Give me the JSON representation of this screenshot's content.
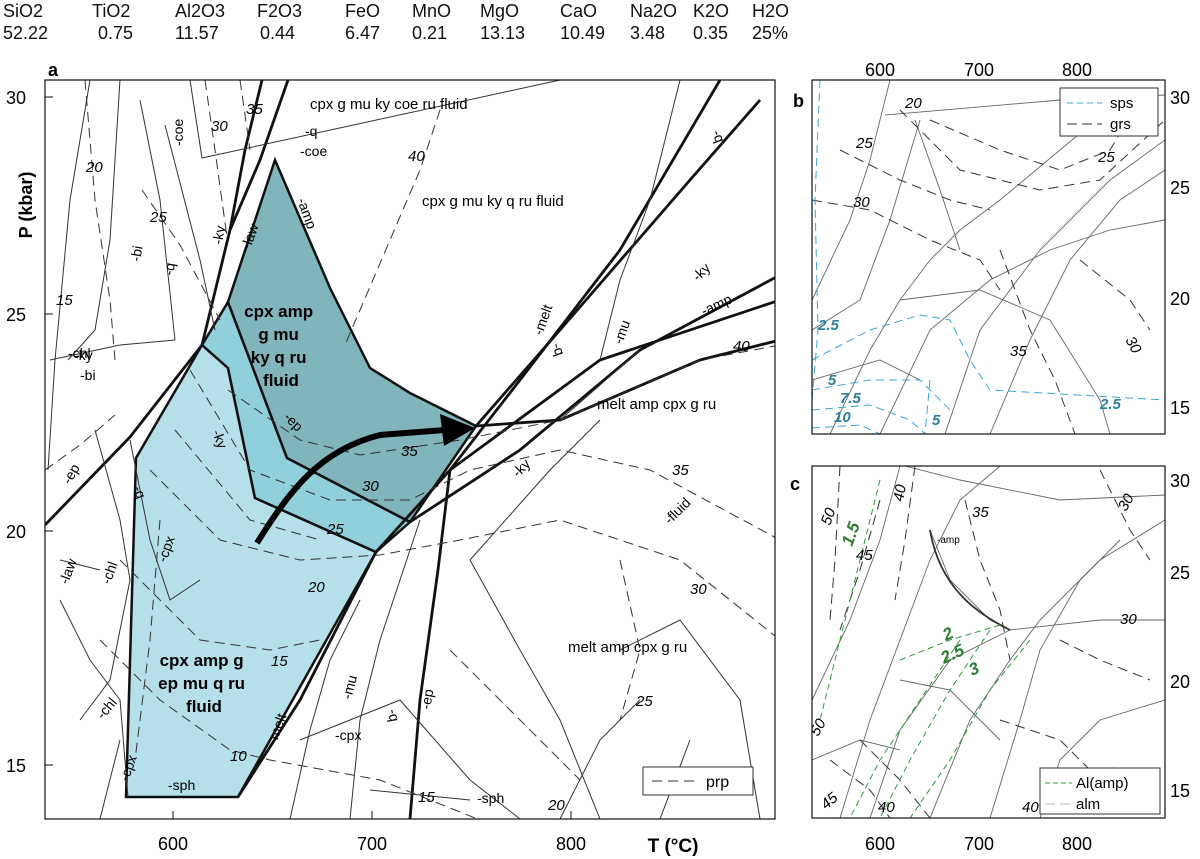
{
  "composition": {
    "oxides": [
      "SiO2",
      "TiO2",
      "Al2O3",
      "F2O3",
      "FeO",
      "MnO",
      "MgO",
      "CaO",
      "Na2O",
      "K2O",
      "H2O"
    ],
    "values": [
      "52.22",
      "0.75",
      "11.57",
      "0.44",
      "6.47",
      "0.21",
      "13.13",
      "10.49",
      "3.48",
      "0.35",
      "25%"
    ]
  },
  "panel_a": {
    "label": "a",
    "xlabel": "T (°C)",
    "ylabel": "P (kbar)",
    "x_ticks": [
      "600",
      "700",
      "800"
    ],
    "y_ticks": [
      "30",
      "25",
      "20",
      "15"
    ],
    "legend": "prp",
    "fields": {
      "high_p": "cpx amp\ng mu\nky q ru\nfluid",
      "low_p": "cpx amp g\nep mu q ru\nfluid",
      "top1": "cpx g mu ky coe ru fluid",
      "top2": "cpx g mu ky q ru fluid",
      "melt1": "melt amp cpx g ru",
      "melt2": "melt amp cpx g ru"
    },
    "boundary_labels": [
      "-coe",
      "-q",
      "-coe",
      "-amp",
      "-law",
      "-ky",
      "-ep",
      "-ky",
      "-q",
      "-bi",
      "-ky",
      "-bi",
      "-chl",
      "-bi",
      "-ep",
      "-q",
      "-law",
      "-chl",
      "-cpx",
      "-chl",
      "-cpx",
      "-sph",
      "-melt",
      "-mu",
      "-q",
      "-ep",
      "-cpx",
      "-sph",
      "-melt",
      "-q",
      "-mu",
      "-ky",
      "-amp",
      "-ky",
      "-fluid",
      "-q"
    ],
    "isopleths": [
      "20",
      "30",
      "35",
      "25",
      "40",
      "15",
      "35",
      "30",
      "25",
      "20",
      "15",
      "10",
      "40",
      "35",
      "30",
      "25",
      "20",
      "15"
    ]
  },
  "panel_b": {
    "label": "b",
    "x_ticks": [
      "600",
      "700",
      "800"
    ],
    "y_ticks": [
      "30",
      "25",
      "20",
      "15"
    ],
    "legend": [
      "sps",
      "grs"
    ],
    "sps_labels": [
      "2.5",
      "5",
      "7.5",
      "10",
      "5",
      "2.5"
    ],
    "grs_labels": [
      "20",
      "25",
      "30",
      "25",
      "35",
      "30"
    ]
  },
  "panel_c": {
    "label": "c",
    "x_ticks": [
      "600",
      "700",
      "800"
    ],
    "y_ticks": [
      "30",
      "25",
      "20",
      "15"
    ],
    "legend": [
      "Al(amp)",
      "alm"
    ],
    "al_labels": [
      "1.5",
      "2",
      "2.5",
      "3"
    ],
    "alm_labels": [
      "50",
      "45",
      "40",
      "35",
      "30",
      "30",
      "35",
      "50",
      "45",
      "40",
      "40"
    ],
    "amp_label": "-amp"
  },
  "colors": {
    "field_dark": "#7fb5bb",
    "field_mid": "#8fd0da",
    "field_light": "#b5dfe9",
    "sps": "#3ba6d6",
    "sps_label": "#2f7fa0",
    "al_amp": "#2e9a3b",
    "al_label": "#2e7d32"
  }
}
